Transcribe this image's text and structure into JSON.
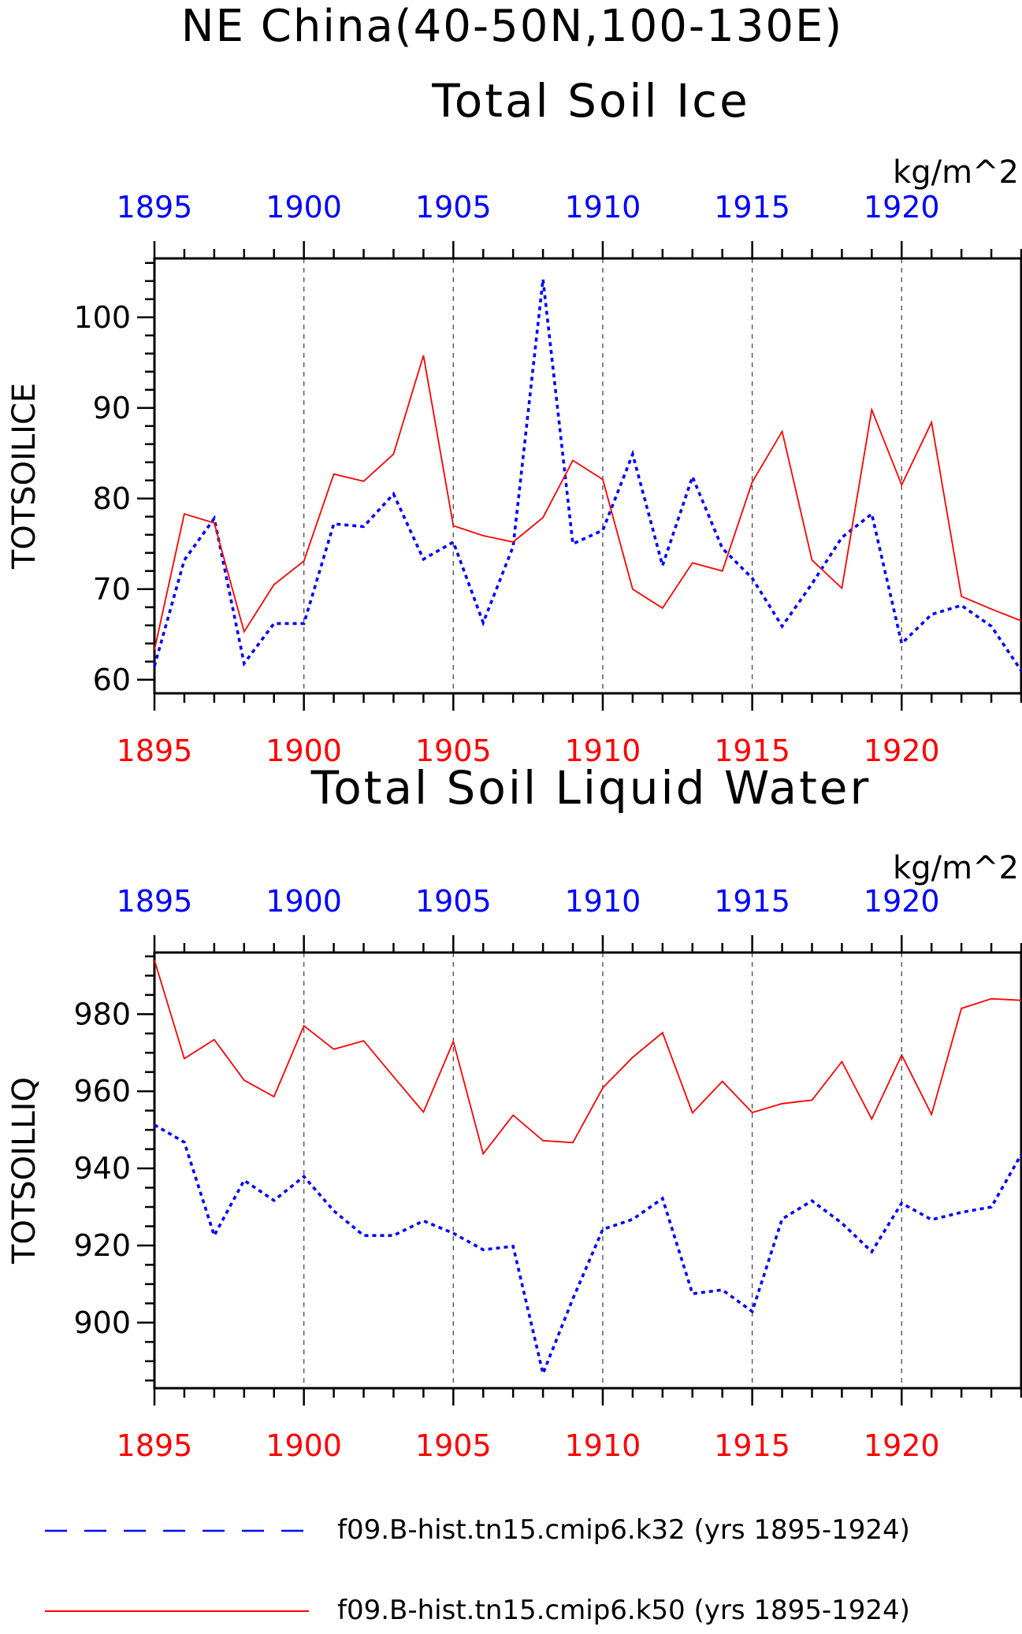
{
  "page": {
    "title": "NE China(40-50N,100-130E)"
  },
  "legend": {
    "items": [
      {
        "label": "f09.B-hist.tn15.cmip6.k32 (yrs 1895-1924)",
        "color": "#0000ff",
        "dash": "dashed"
      },
      {
        "label": "f09.B-hist.tn15.cmip6.k50 (yrs 1895-1924)",
        "color": "#ff0000",
        "dash": "solid"
      }
    ]
  },
  "chart_data": [
    {
      "type": "line",
      "title": "Total Soil Ice",
      "units": "kg/m^2",
      "ylabel": "TOTSOILICE",
      "xlim": [
        1895,
        1924
      ],
      "ylim": [
        58.5,
        106.5
      ],
      "x_ticks": [
        1895,
        1900,
        1905,
        1910,
        1915,
        1920
      ],
      "y_ticks": [
        60,
        70,
        80,
        90,
        100
      ],
      "y_minor_step": 2,
      "vertical_gridlines": [
        1900,
        1905,
        1910,
        1915,
        1920
      ],
      "top_axis_color": "#0000ff",
      "bottom_axis_color": "#ff0000",
      "x": [
        1895,
        1896,
        1897,
        1898,
        1899,
        1900,
        1901,
        1902,
        1903,
        1904,
        1905,
        1906,
        1907,
        1908,
        1909,
        1910,
        1911,
        1912,
        1913,
        1914,
        1915,
        1916,
        1917,
        1918,
        1919,
        1920,
        1921,
        1922,
        1923,
        1924
      ],
      "series": [
        {
          "name": "f09.B-hist.tn15.cmip6.k32 (yrs 1895-1924)",
          "color": "#0000ff",
          "dash": "dashed",
          "values": [
            61.5,
            73.2,
            77.8,
            61.8,
            66.2,
            66.2,
            77.2,
            76.9,
            80.5,
            73.3,
            75.2,
            66.3,
            74.7,
            104.2,
            75.0,
            76.5,
            84.9,
            72.6,
            82.4,
            74.5,
            71.2,
            65.9,
            70.6,
            75.7,
            78.3,
            64.0,
            67.2,
            68.2,
            65.9,
            61.0
          ]
        },
        {
          "name": "f09.B-hist.tn15.cmip6.k50 (yrs 1895-1924)",
          "color": "#ff0000",
          "dash": "solid",
          "values": [
            63.3,
            78.3,
            77.3,
            65.3,
            70.5,
            73.1,
            82.7,
            81.9,
            84.9,
            95.8,
            77.0,
            75.9,
            75.2,
            77.9,
            84.2,
            82.1,
            70.0,
            67.9,
            72.9,
            72.0,
            81.8,
            87.4,
            73.2,
            70.1,
            89.8,
            81.5,
            88.4,
            69.2,
            67.8,
            66.5
          ]
        }
      ]
    },
    {
      "type": "line",
      "title": "Total Soil Liquid Water",
      "units": "kg/m^2",
      "ylabel": "TOTSOILLIQ",
      "xlim": [
        1895,
        1924
      ],
      "ylim": [
        883,
        996
      ],
      "x_ticks": [
        1895,
        1900,
        1905,
        1910,
        1915,
        1920
      ],
      "y_ticks": [
        900,
        920,
        940,
        960,
        980
      ],
      "y_minor_step": 5,
      "vertical_gridlines": [
        1900,
        1905,
        1910,
        1915,
        1920
      ],
      "top_axis_color": "#0000ff",
      "bottom_axis_color": "#ff0000",
      "x": [
        1895,
        1896,
        1897,
        1898,
        1899,
        1900,
        1901,
        1902,
        1903,
        1904,
        1905,
        1906,
        1907,
        1908,
        1909,
        1910,
        1911,
        1912,
        1913,
        1914,
        1915,
        1916,
        1917,
        1918,
        1919,
        1920,
        1921,
        1922,
        1923,
        1924
      ],
      "series": [
        {
          "name": "f09.B-hist.tn15.cmip6.k32 (yrs 1895-1924)",
          "color": "#0000ff",
          "dash": "dashed",
          "values": [
            951.3,
            946.8,
            922.6,
            936.9,
            931.7,
            937.9,
            929.0,
            922.6,
            922.6,
            926.4,
            923.2,
            918.9,
            919.8,
            886.8,
            906.2,
            924.2,
            926.8,
            932.2,
            907.5,
            908.5,
            902.9,
            926.9,
            931.6,
            925.8,
            918.4,
            931.0,
            926.7,
            928.6,
            930.0,
            943.6
          ]
        },
        {
          "name": "f09.B-hist.tn15.cmip6.k50 (yrs 1895-1924)",
          "color": "#ff0000",
          "dash": "solid",
          "values": [
            994.0,
            968.5,
            973.4,
            962.9,
            958.6,
            977.0,
            970.9,
            973.1,
            963.8,
            954.6,
            972.9,
            943.8,
            953.8,
            947.2,
            946.7,
            960.9,
            968.8,
            975.2,
            954.4,
            962.6,
            954.5,
            956.8,
            957.7,
            967.7,
            952.8,
            969.4,
            954.0,
            981.5,
            984.0,
            983.6
          ]
        }
      ]
    }
  ]
}
